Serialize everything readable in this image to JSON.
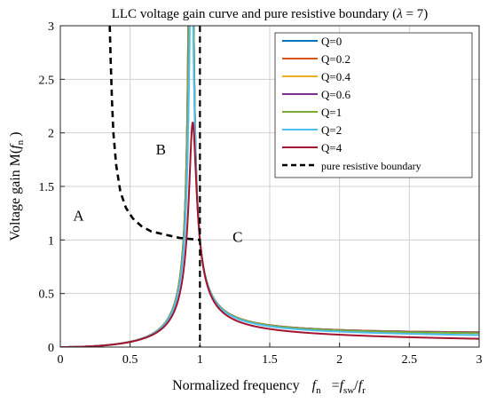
{
  "chart_data": {
    "type": "line",
    "title_main": "LLC voltage gain curve and pure resistive boundary (",
    "title_lambda": "λ",
    "title_tail": " = 7)",
    "xlabel_main": "Normalized frequency",
    "xlabel_fn": "f",
    "xlabel_fn_sub": "n",
    "xlabel_eq": "=",
    "xlabel_fsw": "f",
    "xlabel_fsw_sub": "sw",
    "xlabel_slash": "/",
    "xlabel_fr": "f",
    "xlabel_fr_sub": "r",
    "ylabel_main": "Voltage gain M(",
    "ylabel_f": "f",
    "ylabel_sub": "n",
    "ylabel_close": ")",
    "xlim": [
      0,
      3
    ],
    "ylim": [
      0,
      3
    ],
    "xticks": [
      0,
      0.5,
      1,
      1.5,
      2,
      2.5,
      3
    ],
    "xtick_labels": [
      "0",
      "0.5",
      "1",
      "1.5",
      "2",
      "2.5",
      "3"
    ],
    "yticks": [
      0,
      0.5,
      1,
      1.5,
      2,
      2.5,
      3
    ],
    "ytick_labels": [
      "0",
      "0.5",
      "1",
      "1.5",
      "2",
      "2.5",
      "3"
    ],
    "grid": true,
    "legend_position": "top-right",
    "lambda": 7,
    "series": [
      {
        "name": "Q=0",
        "Q": 0,
        "color": "#0072bd"
      },
      {
        "name": "Q=0.2",
        "Q": 0.2,
        "color": "#d95319"
      },
      {
        "name": "Q=0.4",
        "Q": 0.4,
        "color": "#edb120"
      },
      {
        "name": "Q=0.6",
        "Q": 0.6,
        "color": "#7e2f8e"
      },
      {
        "name": "Q=1",
        "Q": 1,
        "color": "#77ac30"
      },
      {
        "name": "Q=2",
        "Q": 2,
        "color": "#4dbeee"
      },
      {
        "name": "Q=4",
        "Q": 4,
        "color": "#a2142f"
      }
    ],
    "boundary": {
      "name": "pure resistive boundary",
      "color": "#000000",
      "style": "dashed",
      "points": [
        [
          0.354,
          3.0
        ],
        [
          0.36,
          2.7
        ],
        [
          0.37,
          2.3
        ],
        [
          0.38,
          2.0
        ],
        [
          0.4,
          1.7
        ],
        [
          0.43,
          1.45
        ],
        [
          0.47,
          1.3
        ],
        [
          0.52,
          1.2
        ],
        [
          0.58,
          1.13
        ],
        [
          0.65,
          1.08
        ],
        [
          0.75,
          1.05
        ],
        [
          0.85,
          1.02
        ],
        [
          1.0,
          1.0
        ]
      ]
    },
    "vertical_line": {
      "x": 1,
      "style": "dashed",
      "color": "#000000"
    },
    "annotations": [
      {
        "text": "A",
        "x": 0.13,
        "y": 1.18
      },
      {
        "text": "B",
        "x": 0.72,
        "y": 1.8
      },
      {
        "text": "C",
        "x": 1.27,
        "y": 0.98
      }
    ]
  }
}
